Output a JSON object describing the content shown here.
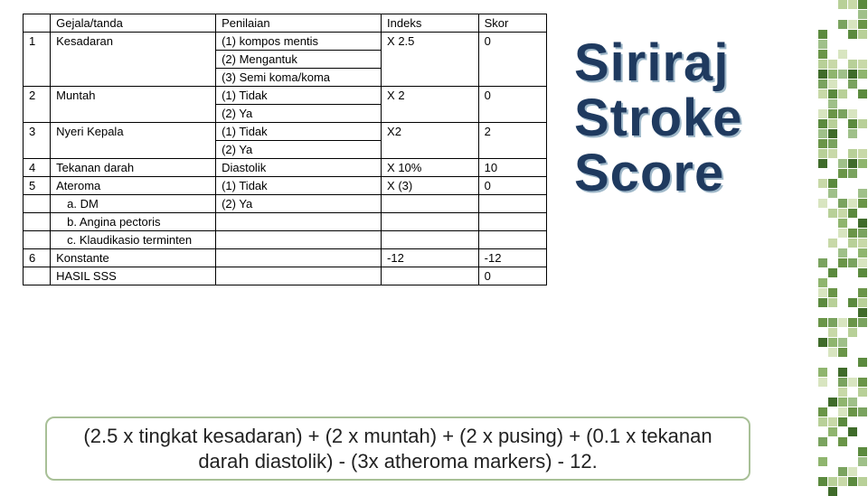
{
  "headers": {
    "gejala": "Gejala/tanda",
    "penilaian": "Penilaian",
    "indeks": "Indeks",
    "skor": "Skor"
  },
  "rows": {
    "r1": {
      "n": "1",
      "g": "Kesadaran",
      "p1": "(1)   kompos mentis",
      "p2": "(2)   Mengantuk",
      "p3": "(3)   Semi koma/koma",
      "i": "X 2.5",
      "s": "0"
    },
    "r2": {
      "n": "2",
      "g": "Muntah",
      "p1": "(1)   Tidak",
      "p2": "(2)   Ya",
      "i": "X 2",
      "s": "0"
    },
    "r3": {
      "n": "3",
      "g": "Nyeri Kepala",
      "p1": "(1)   Tidak",
      "p2": "(2)   Ya",
      "i": "X2",
      "s": "2"
    },
    "r4": {
      "n": "4",
      "g": "Tekanan darah",
      "p": " Diastolik",
      "i": "X 10%",
      "s": "10"
    },
    "r5": {
      "n": "5",
      "g": "Ateroma",
      "p": "(1)   Tidak",
      "i": "X (3)",
      "s": "0"
    },
    "r5a": {
      "g": "a.    DM",
      "p": "(2)   Ya"
    },
    "r5b": {
      "g": "b.    Angina pectoris"
    },
    "r5c": {
      "g": "c.    Klaudikasio terminten"
    },
    "r6": {
      "n": "6",
      "g": "Konstante",
      "i": "-12",
      "s": "-12"
    },
    "r7": {
      "g": "HASIL SSS",
      "s": "0"
    }
  },
  "title": {
    "l1": "Siriraj",
    "l2": "Stroke",
    "l3": "Score"
  },
  "formula": "(2.5 x tingkat kesadaran) + (2 x muntah) + (2 x pusing) + (0.1 x tekanan darah diastolik) - (3x atheroma markers) - 12.",
  "deco_colors": [
    "#c8d9a8",
    "#9fc089",
    "#7aa35f",
    "#5b8a3e",
    "#3f6b2a",
    "#d8e5c0",
    "#b8d098",
    "#8fb56e",
    "#6a9548"
  ]
}
